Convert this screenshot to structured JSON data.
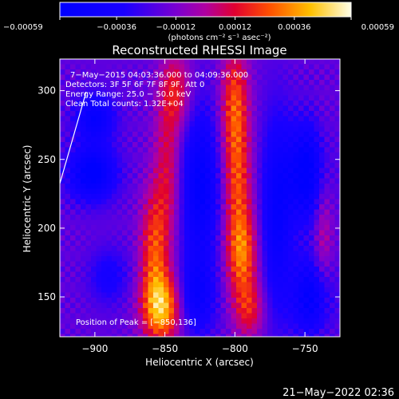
{
  "chart_data": {
    "type": "heatmap",
    "title": "Reconstructed RHESSI Image",
    "xlabel": "Heliocentric X (arcsec)",
    "ylabel": "Heliocentric Y (arcsec)",
    "xlim": [
      -925,
      -725
    ],
    "ylim": [
      121,
      323
    ],
    "x_ticks": [
      -900,
      -850,
      -800,
      -750
    ],
    "y_ticks": [
      150,
      200,
      250,
      300
    ],
    "x_tick_labels": [
      "−900",
      "−850",
      "−800",
      "−750"
    ],
    "y_tick_labels": [
      "150",
      "200",
      "250",
      "300"
    ],
    "colorbar": {
      "min": -0.00059,
      "max": 0.00059,
      "ticks": [
        -0.00059,
        -0.00036,
        -0.00012,
        0.00012,
        0.00036,
        0.00059
      ],
      "tick_labels": [
        "−0.00059",
        "−0.00036",
        "−0.00012",
        "0.00012",
        "0.00036",
        "0.00059"
      ],
      "units_label": "(photons cm⁻² s⁻¹ asec⁻²)"
    },
    "annotations": [
      "7−May−2015 04:03:36.000 to 04:09:36.000",
      "Detectors: 3F 5F 6F 7F 8F 9F, Att 0",
      "Energy Range: 25.0 − 50.0 keV",
      "Clean     Total counts: 1.32E+04"
    ],
    "peak_label": "Position of Peak = [−850,136]",
    "peak": [
      -850,
      136
    ],
    "features": [
      {
        "x": -902,
        "y": 240,
        "amp": -0.00045,
        "w": 12,
        "h": 14
      },
      {
        "x": -900,
        "y": 280,
        "amp": -0.00035,
        "w": 10,
        "h": 12
      },
      {
        "x": -890,
        "y": 165,
        "amp": -0.0002,
        "w": 10,
        "h": 14
      },
      {
        "x": -852,
        "y": 142,
        "amp": 0.00059,
        "w": 10,
        "h": 18
      },
      {
        "x": -858,
        "y": 185,
        "amp": 0.00038,
        "w": 7,
        "h": 30
      },
      {
        "x": -848,
        "y": 240,
        "amp": 0.00028,
        "w": 7,
        "h": 40
      },
      {
        "x": -842,
        "y": 300,
        "amp": 0.0003,
        "w": 8,
        "h": 20
      },
      {
        "x": -825,
        "y": 230,
        "amp": -0.0004,
        "w": 10,
        "h": 40
      },
      {
        "x": -828,
        "y": 150,
        "amp": -0.0003,
        "w": 10,
        "h": 20
      },
      {
        "x": -800,
        "y": 290,
        "amp": 0.00042,
        "w": 7,
        "h": 30
      },
      {
        "x": -798,
        "y": 230,
        "amp": 0.00036,
        "w": 7,
        "h": 30
      },
      {
        "x": -795,
        "y": 180,
        "amp": 0.00045,
        "w": 8,
        "h": 22
      },
      {
        "x": -790,
        "y": 140,
        "amp": 0.0003,
        "w": 8,
        "h": 15
      },
      {
        "x": -770,
        "y": 210,
        "amp": -0.00035,
        "w": 8,
        "h": 50
      },
      {
        "x": -748,
        "y": 240,
        "amp": -0.00045,
        "w": 10,
        "h": 25
      },
      {
        "x": -745,
        "y": 150,
        "amp": -0.0004,
        "w": 10,
        "h": 20
      },
      {
        "x": -737,
        "y": 200,
        "amp": 0.00022,
        "w": 5,
        "h": 45
      }
    ]
  },
  "footer_timestamp": "21−May−2022 02:36"
}
